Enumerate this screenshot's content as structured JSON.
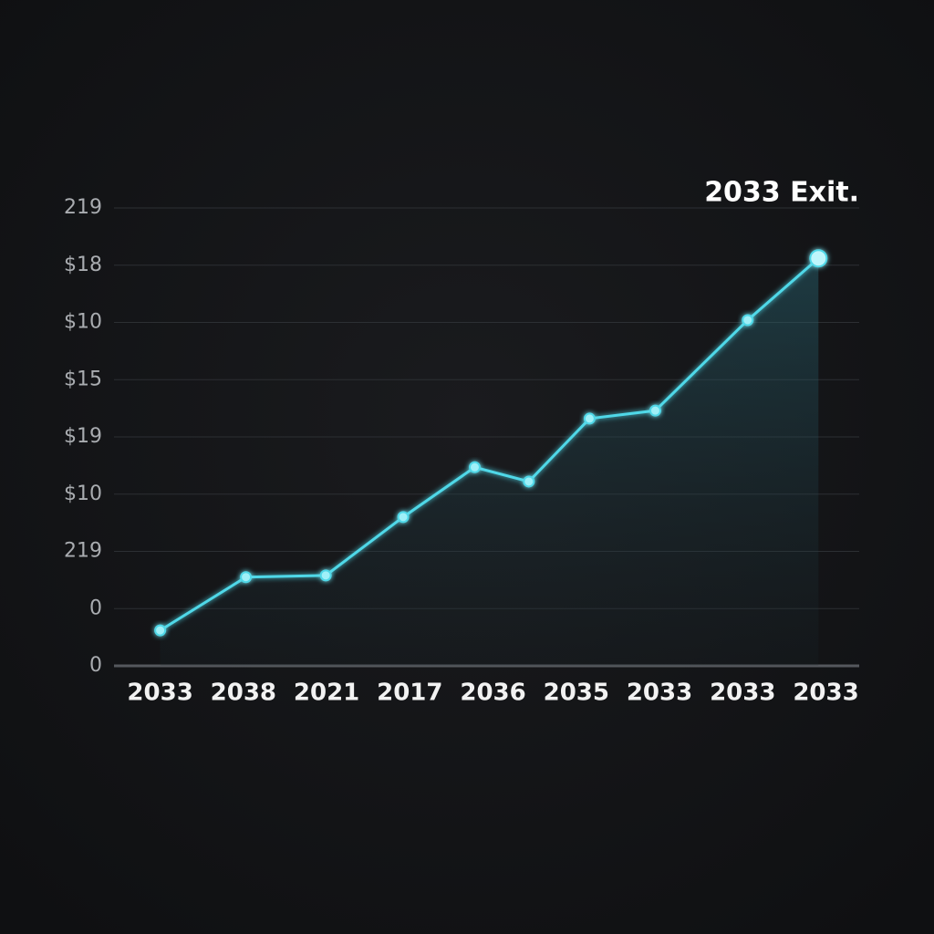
{
  "chart_data": {
    "type": "line",
    "annotation": "2033 Exit.",
    "x": [
      0,
      1.03,
      1.99,
      2.92,
      3.78,
      4.43,
      5.16,
      5.95,
      7.06,
      7.91
    ],
    "series": [
      {
        "color": "#4fd8e8",
        "values": [
          0.62,
          1.55,
          1.58,
          2.6,
          3.47,
          3.22,
          4.32,
          4.46,
          6.04,
          7.12
        ]
      }
    ],
    "xlim": [
      -0.5,
      8.4
    ],
    "xticks": [
      {
        "value": 0,
        "label": "2033"
      },
      {
        "value": 1,
        "label": "2038"
      },
      {
        "value": 2,
        "label": "2021"
      },
      {
        "value": 3,
        "label": "2017"
      },
      {
        "value": 4,
        "label": "2036"
      },
      {
        "value": 5,
        "label": "2035"
      },
      {
        "value": 6,
        "label": "2033"
      },
      {
        "value": 7,
        "label": "2033"
      },
      {
        "value": 8,
        "label": "2033"
      }
    ],
    "ylim": [
      0,
      8
    ],
    "yticks": [
      {
        "value": 0,
        "label": "0"
      },
      {
        "value": 1,
        "label": "0"
      },
      {
        "value": 2,
        "label": "219"
      },
      {
        "value": 3,
        "label": "$10"
      },
      {
        "value": 4,
        "label": "$19"
      },
      {
        "value": 5,
        "label": "$15"
      },
      {
        "value": 6,
        "label": "$10"
      },
      {
        "value": 7,
        "label": "$18"
      },
      {
        "value": 8,
        "label": "219"
      }
    ],
    "grid": true
  }
}
